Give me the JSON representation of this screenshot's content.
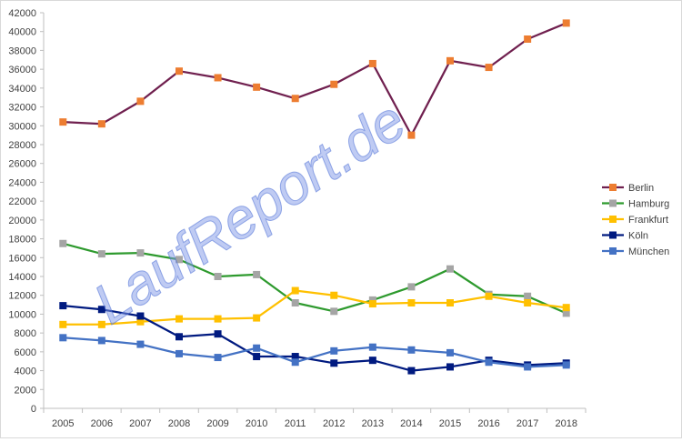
{
  "chart_data": {
    "type": "line",
    "title": "",
    "xlabel": "",
    "ylabel": "",
    "ylim": [
      0,
      42000
    ],
    "yticks": [
      0,
      2000,
      4000,
      6000,
      8000,
      10000,
      12000,
      14000,
      16000,
      18000,
      20000,
      22000,
      24000,
      26000,
      28000,
      30000,
      32000,
      34000,
      36000,
      38000,
      40000,
      42000
    ],
    "categories": [
      "2005",
      "2006",
      "2007",
      "2008",
      "2009",
      "2010",
      "2011",
      "2012",
      "2013",
      "2014",
      "2015",
      "2016",
      "2017",
      "2018"
    ],
    "grid": false,
    "legend_position": "right",
    "watermark": "LaufReport.de",
    "series": [
      {
        "name": "Berlin",
        "line_color": "#70204f",
        "marker_color": "#ed7d31",
        "values": [
          30400,
          30200,
          32600,
          35800,
          35100,
          34100,
          32900,
          34400,
          36600,
          29000,
          36900,
          36200,
          39200,
          40900
        ]
      },
      {
        "name": "Hamburg",
        "line_color": "#2e9a2e",
        "marker_color": "#a5a5a5",
        "values": [
          17500,
          16400,
          16500,
          15800,
          14000,
          14200,
          11200,
          10300,
          11500,
          12900,
          14800,
          12100,
          11900,
          10100
        ]
      },
      {
        "name": "Frankfurt",
        "line_color": "#ffc000",
        "marker_color": "#ffc000",
        "values": [
          8900,
          8900,
          9200,
          9500,
          9500,
          9600,
          12500,
          12000,
          11100,
          11200,
          11200,
          11900,
          11200,
          10700
        ]
      },
      {
        "name": "Köln",
        "line_color": "#001a80",
        "marker_color": "#001a80",
        "values": [
          10900,
          10500,
          9800,
          7600,
          7900,
          5500,
          5500,
          4800,
          5100,
          4000,
          4400,
          5100,
          4600,
          4800
        ]
      },
      {
        "name": "München",
        "line_color": "#4472c4",
        "marker_color": "#4472c4",
        "values": [
          7500,
          7200,
          6800,
          5800,
          5400,
          6400,
          4900,
          6100,
          6500,
          6200,
          5900,
          4900,
          4400,
          4600
        ]
      }
    ]
  }
}
